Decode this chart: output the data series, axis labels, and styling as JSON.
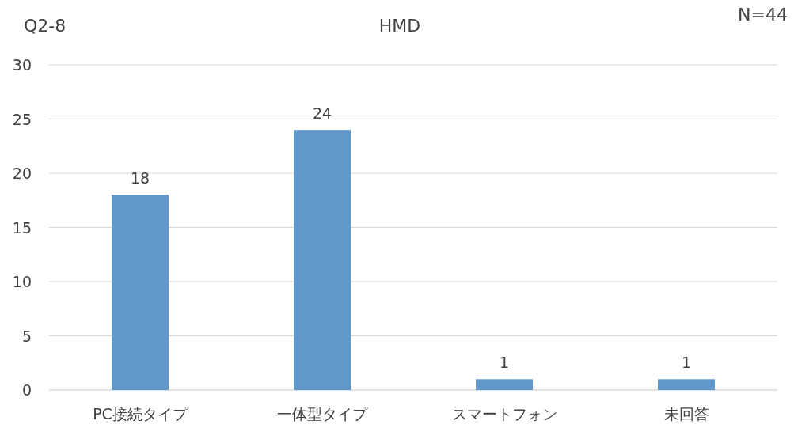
{
  "chart_data": {
    "type": "bar",
    "title": "HMD",
    "annotations": [
      "Q2-8",
      "N=44"
    ],
    "categories": [
      "PC接続タイプ",
      "一体型タイプ",
      "スマートフォン",
      "未回答"
    ],
    "values": [
      18,
      24,
      1,
      1
    ],
    "color": "#6098cc",
    "ylim": [
      0,
      30
    ],
    "yticks": [
      0,
      5,
      10,
      15,
      20,
      25,
      30
    ],
    "grid": "y",
    "data_labels": true
  }
}
